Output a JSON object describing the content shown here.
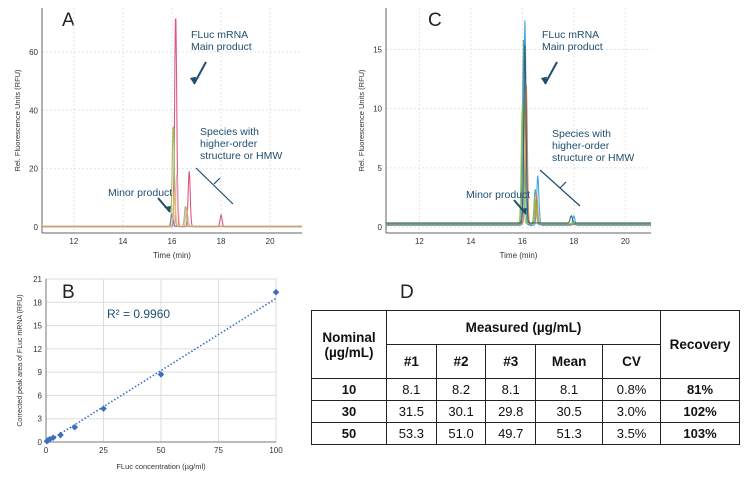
{
  "panels": {
    "a": "A",
    "b": "B",
    "c": "C",
    "d": "D"
  },
  "chart_data": [
    {
      "panel": "A",
      "type": "line",
      "xlabel": "Time (min)",
      "ylabel": "Rel. Fluorescence Units (RFU)",
      "xlim": [
        10.7,
        21.3
      ],
      "ylim": [
        -2,
        75
      ],
      "xticks": [
        12,
        14,
        16,
        18,
        20
      ],
      "yticks": [
        0,
        20,
        40,
        60
      ],
      "grid": true,
      "annotations": [
        "FLuc mRNA\nMain product",
        "Species with\nhigher-order\nstructure or HMW",
        "Minor product"
      ],
      "series": [
        {
          "color": "#d9476e",
          "peaks": [
            [
              16.15,
              73
            ],
            [
              16.7,
              19
            ],
            [
              18.0,
              4
            ]
          ]
        },
        {
          "color": "#8dbf4a",
          "peaks": [
            [
              16.05,
              35
            ],
            [
              16.55,
              7
            ]
          ]
        },
        {
          "color": "#e8a0b8",
          "peaks": [
            [
              16.2,
              18
            ],
            [
              16.6,
              6
            ]
          ]
        },
        {
          "color": "#7a6ab8",
          "peaks": [
            [
              16.0,
              4
            ]
          ]
        },
        {
          "color": "#e0c060",
          "peaks": [
            [
              16.1,
              12
            ]
          ]
        }
      ]
    },
    {
      "panel": "C",
      "type": "line",
      "xlabel": "Time (min)",
      "ylabel": "Rel. Fluorescence Units (RFU)",
      "xlim": [
        10.7,
        21.0
      ],
      "ylim": [
        -0.5,
        18.5
      ],
      "xticks": [
        12,
        14,
        16,
        18,
        20
      ],
      "yticks": [
        0,
        5,
        10,
        15
      ],
      "grid": true,
      "annotations": [
        "FLuc mRNA\nMain product",
        "Species with\nhigher-order\nstructure or HMW",
        "Minor product"
      ],
      "series": [
        {
          "color": "#2f9ed8",
          "peaks": [
            [
              16.1,
              17.3
            ],
            [
              16.6,
              4.2
            ],
            [
              18.0,
              0.8
            ]
          ]
        },
        {
          "color": "#4f9a9a",
          "peaks": [
            [
              16.05,
              16
            ],
            [
              16.5,
              3
            ]
          ]
        },
        {
          "color": "#e07b2e",
          "peaks": [
            [
              16.15,
              12
            ],
            [
              16.55,
              2.5
            ]
          ]
        },
        {
          "color": "#8fbf3a",
          "peaks": [
            [
              16.0,
              10
            ],
            [
              16.5,
              2
            ]
          ]
        },
        {
          "color": "#2e5a7a",
          "peaks": [
            [
              16.1,
              15
            ],
            [
              17.9,
              0.6
            ]
          ]
        }
      ]
    },
    {
      "panel": "B",
      "type": "scatter",
      "xlabel": "FLuc concentration (µg/ml)",
      "ylabel": "Corrected peak area of FLuc mRNA (RFU)",
      "xlim": [
        0,
        100
      ],
      "ylim": [
        0,
        21
      ],
      "xticks": [
        0,
        25,
        50,
        75,
        100
      ],
      "yticks": [
        0,
        3,
        6,
        9,
        12,
        15,
        18,
        21
      ],
      "grid": true,
      "annotation": "R² = 0.9960",
      "points": [
        {
          "x": 0.4,
          "y": 0.1
        },
        {
          "x": 0.8,
          "y": 0.2
        },
        {
          "x": 1.6,
          "y": 0.35
        },
        {
          "x": 3.1,
          "y": 0.55
        },
        {
          "x": 6.3,
          "y": 0.9
        },
        {
          "x": 12.5,
          "y": 1.9
        },
        {
          "x": 25,
          "y": 4.3
        },
        {
          "x": 50,
          "y": 8.7
        },
        {
          "x": 100,
          "y": 19.3
        }
      ],
      "trendline": {
        "x": [
          0,
          100
        ],
        "y": [
          -0.1,
          18.5
        ]
      },
      "color": "#3b6fc4"
    }
  ],
  "table": {
    "nominal_header": "Nominal (µg/mL)",
    "measured_header": "Measured (µg/mL)",
    "recovery_header": "Recovery",
    "sub_headers": [
      "#1",
      "#2",
      "#3",
      "Mean",
      "CV"
    ],
    "rows": [
      {
        "nominal": "10",
        "vals": [
          "8.1",
          "8.2",
          "8.1",
          "8.1",
          "0.8%"
        ],
        "recovery": "81%"
      },
      {
        "nominal": "30",
        "vals": [
          "31.5",
          "30.1",
          "29.8",
          "30.5",
          "3.0%"
        ],
        "recovery": "102%"
      },
      {
        "nominal": "50",
        "vals": [
          "53.3",
          "51.0",
          "49.7",
          "51.3",
          "3.5%"
        ],
        "recovery": "103%"
      }
    ]
  }
}
